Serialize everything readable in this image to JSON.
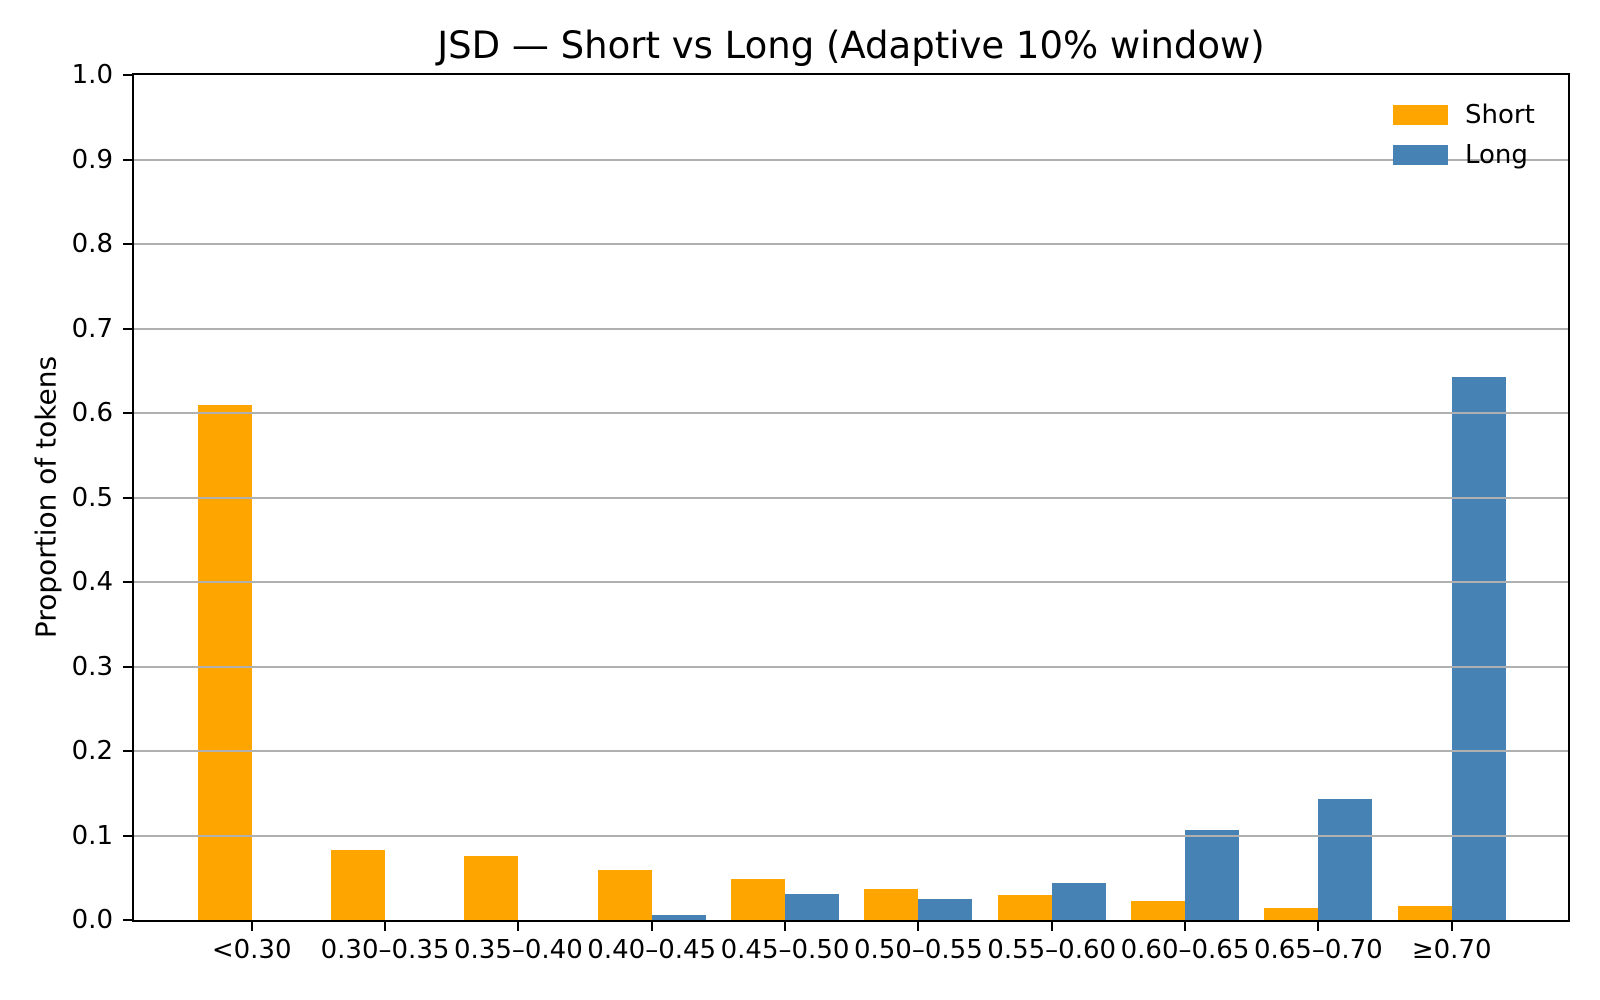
{
  "figure": {
    "background": "#ffffff"
  },
  "chart_data": {
    "type": "bar",
    "title": "JSD — Short vs Long (Adaptive 10% window)",
    "xlabel": "",
    "ylabel": "Proportion of tokens",
    "categories": [
      "<0.30",
      "0.30–0.35",
      "0.35–0.40",
      "0.40–0.45",
      "0.45–0.50",
      "0.50–0.55",
      "0.55–0.60",
      "0.60–0.65",
      "0.65–0.70",
      "≥0.70"
    ],
    "series": [
      {
        "name": "Short",
        "color": "#FFA500",
        "values": [
          0.61,
          0.083,
          0.076,
          0.059,
          0.048,
          0.037,
          0.029,
          0.022,
          0.014,
          0.017
        ]
      },
      {
        "name": "Long",
        "color": "#4682B4",
        "values": [
          0.0,
          0.0,
          0.0,
          0.006,
          0.031,
          0.025,
          0.044,
          0.106,
          0.143,
          0.643
        ]
      }
    ],
    "ylim": [
      0.0,
      1.0
    ],
    "yticks": [
      "0.0",
      "0.1",
      "0.2",
      "0.3",
      "0.4",
      "0.5",
      "0.6",
      "0.7",
      "0.8",
      "0.9",
      "1.0"
    ],
    "grid": {
      "axis": "y",
      "color": "#b0b0b0",
      "lines_at": [
        0.1,
        0.2,
        0.3,
        0.4,
        0.5,
        0.6,
        0.7,
        0.8,
        0.9
      ],
      "on_top_of_bars": true
    },
    "legend": {
      "position": "upper right",
      "frame": false,
      "entries": [
        "Short",
        "Long"
      ]
    },
    "spine_color": "#000000"
  }
}
